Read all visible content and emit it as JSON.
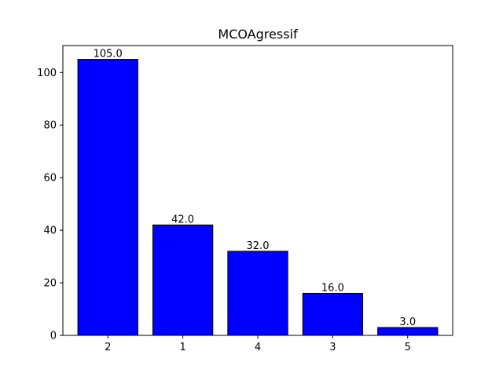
{
  "chart_data": {
    "type": "bar",
    "title": "MCOAgressif",
    "xlabel": "",
    "ylabel": "",
    "categories": [
      "2",
      "1",
      "4",
      "3",
      "5"
    ],
    "values": [
      105.0,
      42.0,
      32.0,
      16.0,
      3.0
    ],
    "value_labels": [
      "105.0",
      "42.0",
      "32.0",
      "16.0",
      "3.0"
    ],
    "ylim": [
      0,
      110.25
    ],
    "yticks": [
      0,
      20,
      40,
      60,
      80,
      100
    ],
    "ytick_labels": [
      "0",
      "20",
      "40",
      "60",
      "80",
      "100"
    ],
    "bar_color": "#0000ff",
    "edge_color": "#000000",
    "grid": false,
    "legend": "none"
  }
}
